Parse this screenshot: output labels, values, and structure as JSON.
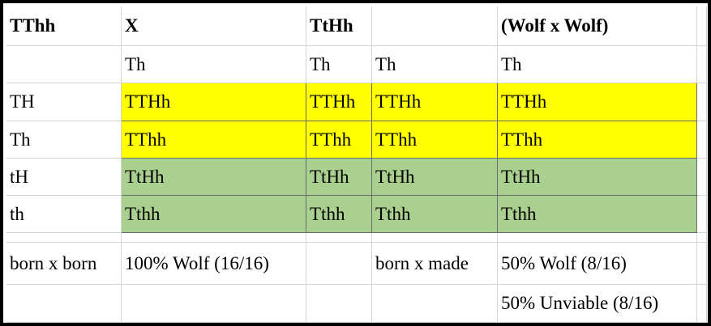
{
  "table": {
    "rows": [
      [
        "TThh",
        "X",
        "TtHh",
        null,
        "(Wolf x Wolf)"
      ],
      [
        null,
        "Th",
        "Th",
        "Th",
        "Th"
      ],
      [
        "TH",
        "TTHh",
        "TTHh",
        "TTHh",
        "TTHh"
      ],
      [
        "Th",
        "TThh",
        "TThh",
        "TThh",
        "TThh"
      ],
      [
        "tH",
        "TtHh",
        "TtHh",
        "TtHh",
        "TtHh"
      ],
      [
        "th",
        "Tthh",
        "Tthh",
        "Tthh",
        "Tthh"
      ],
      [
        "born x born",
        "100% Wolf (16/16)",
        null,
        "born x made",
        "50% Wolf (8/16)"
      ],
      [
        null,
        null,
        null,
        null,
        "50% Unviable (8/16)"
      ]
    ]
  }
}
